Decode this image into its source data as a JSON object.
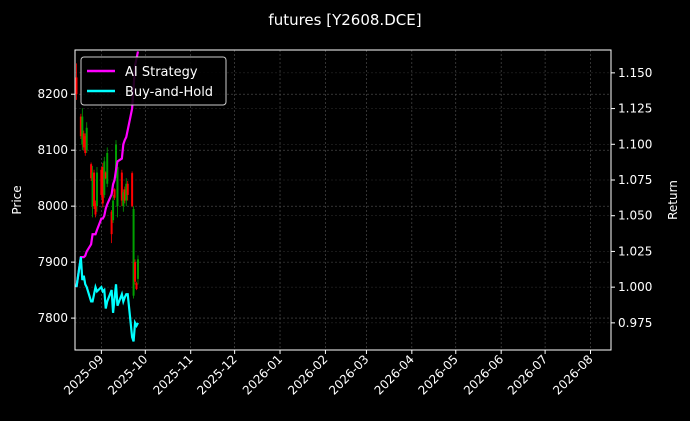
{
  "chart_data": {
    "type": "candlestick+line",
    "title": "futures [Y2608.DCE]",
    "ylabel_left": "Price",
    "ylabel_right": "Return",
    "xlim": [
      "2025-08-14",
      "2026-08-15"
    ],
    "ylim_left": [
      7743,
      8279
    ],
    "ylim_right": [
      0.956,
      1.166
    ],
    "x_ticks": [
      "2025-09",
      "2025-10",
      "2025-11",
      "2025-12",
      "2026-01",
      "2026-02",
      "2026-03",
      "2026-04",
      "2026-05",
      "2026-06",
      "2026-07",
      "2026-08"
    ],
    "y_ticks_left": [
      7800,
      7900,
      8000,
      8100,
      8200
    ],
    "y_ticks_right": [
      "0.975",
      "1.000",
      "1.025",
      "1.050",
      "1.075",
      "1.100",
      "1.125",
      "1.150"
    ],
    "grid": true,
    "legend_position": "top-left",
    "colors": {
      "up": "#00a000",
      "down": "#ff0000",
      "strategy": "#ff00ff",
      "buy_hold": "#00ffff",
      "background": "#000000",
      "grid": "#555555"
    },
    "candles": [
      {
        "date": "2025-08-15",
        "o": 8230,
        "h": 8255,
        "l": 8190,
        "c": 8200
      },
      {
        "date": "2025-08-18",
        "o": 8160,
        "h": 8165,
        "l": 8120,
        "c": 8125
      },
      {
        "date": "2025-08-19",
        "o": 8110,
        "h": 8175,
        "l": 8100,
        "c": 8160
      },
      {
        "date": "2025-08-20",
        "o": 8130,
        "h": 8135,
        "l": 8100,
        "c": 8105
      },
      {
        "date": "2025-08-21",
        "o": 8125,
        "h": 8130,
        "l": 8090,
        "c": 8095
      },
      {
        "date": "2025-08-22",
        "o": 8100,
        "h": 8150,
        "l": 8095,
        "c": 8140
      },
      {
        "date": "2025-08-25",
        "o": 8075,
        "h": 8078,
        "l": 8045,
        "c": 8050
      },
      {
        "date": "2025-08-26",
        "o": 8000,
        "h": 8072,
        "l": 7980,
        "c": 8060
      },
      {
        "date": "2025-08-27",
        "o": 8060,
        "h": 8065,
        "l": 7995,
        "c": 8000
      },
      {
        "date": "2025-08-28",
        "o": 8005,
        "h": 8010,
        "l": 7980,
        "c": 7985
      },
      {
        "date": "2025-08-29",
        "o": 8000,
        "h": 8070,
        "l": 7990,
        "c": 8060
      },
      {
        "date": "2025-09-01",
        "o": 8065,
        "h": 8070,
        "l": 8015,
        "c": 8020
      },
      {
        "date": "2025-09-02",
        "o": 8070,
        "h": 8077,
        "l": 7998,
        "c": 8005
      },
      {
        "date": "2025-09-03",
        "o": 8020,
        "h": 8088,
        "l": 8015,
        "c": 8080
      },
      {
        "date": "2025-09-04",
        "o": 8060,
        "h": 8062,
        "l": 8048,
        "c": 8050
      },
      {
        "date": "2025-09-05",
        "o": 8040,
        "h": 8105,
        "l": 8034,
        "c": 8095
      },
      {
        "date": "2025-09-08",
        "o": 7990,
        "h": 7993,
        "l": 7934,
        "c": 7950
      },
      {
        "date": "2025-09-09",
        "o": 7975,
        "h": 8020,
        "l": 7970,
        "c": 8010
      },
      {
        "date": "2025-09-10",
        "o": 8030,
        "h": 8032,
        "l": 8011,
        "c": 8015
      },
      {
        "date": "2025-09-11",
        "o": 8055,
        "h": 8118,
        "l": 8050,
        "c": 8110
      },
      {
        "date": "2025-09-12",
        "o": 8000,
        "h": 8080,
        "l": 7980,
        "c": 8070
      },
      {
        "date": "2025-09-15",
        "o": 8060,
        "h": 8065,
        "l": 8000,
        "c": 8010
      },
      {
        "date": "2025-09-16",
        "o": 8000,
        "h": 8030,
        "l": 7990,
        "c": 8025
      },
      {
        "date": "2025-09-17",
        "o": 8030,
        "h": 8035,
        "l": 8005,
        "c": 8010
      },
      {
        "date": "2025-09-18",
        "o": 8010,
        "h": 8050,
        "l": 8000,
        "c": 8040
      },
      {
        "date": "2025-09-19",
        "o": 8040,
        "h": 8045,
        "l": 8010,
        "c": 8020
      },
      {
        "date": "2025-09-22",
        "o": 8059,
        "h": 8062,
        "l": 7998,
        "c": 8000
      },
      {
        "date": "2025-09-23",
        "o": 7840,
        "h": 8000,
        "l": 7835,
        "c": 7995
      },
      {
        "date": "2025-09-24",
        "o": 7900,
        "h": 7905,
        "l": 7860,
        "c": 7865
      },
      {
        "date": "2025-09-25",
        "o": 7862,
        "h": 7865,
        "l": 7850,
        "c": 7852
      },
      {
        "date": "2025-09-26",
        "o": 7870,
        "h": 7912,
        "l": 7860,
        "c": 7905
      }
    ],
    "series": [
      {
        "name": "AI Strategy",
        "color": "#ff00ff",
        "values": [
          1.0,
          1.021,
          1.021,
          1.021,
          1.022,
          1.025,
          1.03,
          1.037,
          1.037,
          1.037,
          1.04,
          1.048,
          1.048,
          1.05,
          1.055,
          1.058,
          1.065,
          1.072,
          1.075,
          1.082,
          1.088,
          1.09,
          1.1,
          1.103,
          1.105,
          1.11,
          1.125,
          1.14,
          1.155,
          1.16,
          1.165
        ]
      },
      {
        "name": "Buy-and-Hold",
        "color": "#00ffff",
        "values": [
          1.0,
          1.021,
          1.005,
          1.008,
          1.002,
          1.0,
          0.99,
          0.99,
          0.995,
          1.0,
          0.997,
          1.0,
          0.997,
          0.998,
          0.985,
          0.99,
          0.998,
          0.982,
          0.992,
          1.002,
          0.987,
          0.995,
          0.99,
          0.993,
          0.995,
          0.995,
          0.965,
          0.962,
          0.975,
          0.973,
          0.975
        ]
      }
    ]
  }
}
